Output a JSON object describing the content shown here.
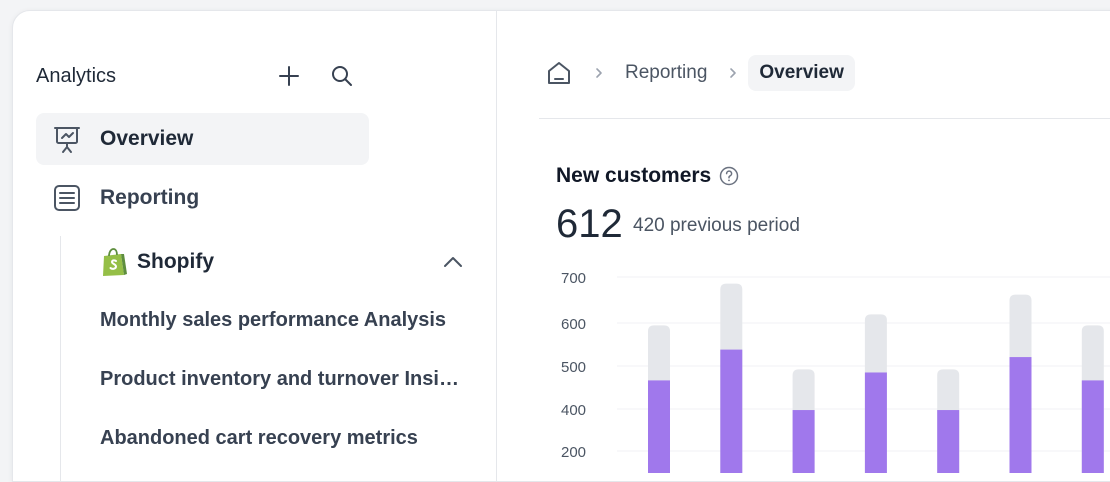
{
  "sidebar": {
    "title": "Analytics",
    "add_icon": "plus-icon",
    "search_icon": "search-icon",
    "items": [
      {
        "label": "Overview",
        "icon": "presentation-icon",
        "active": true
      },
      {
        "label": "Reporting",
        "icon": "list-icon",
        "active": false
      }
    ],
    "group": {
      "label": "Shopify",
      "icon": "shopify-bag-icon",
      "expanded": true
    },
    "reports": [
      "Monthly sales performance Analysis",
      "Product inventory and turnover Insights",
      "Abandoned cart recovery metrics"
    ]
  },
  "breadcrumb": {
    "home_icon": "home-icon",
    "items": [
      "Reporting",
      "Overview"
    ]
  },
  "metric": {
    "title": "New customers",
    "value": "612",
    "previous": "420 previous period"
  },
  "colors": {
    "accent": "#a078ec",
    "bar_bg": "#e5e7eb"
  },
  "chart_data": {
    "type": "bar",
    "y_ticks": [
      "700",
      "600",
      "500",
      "400",
      "200"
    ],
    "series": [
      {
        "values": [
          590,
          685,
          490,
          615,
          490,
          660,
          590
        ]
      },
      {
        "values": [
          465,
          535,
          395,
          483,
          395,
          518,
          465
        ]
      }
    ],
    "ylim": [
      200,
      700
    ],
    "grid": true
  }
}
